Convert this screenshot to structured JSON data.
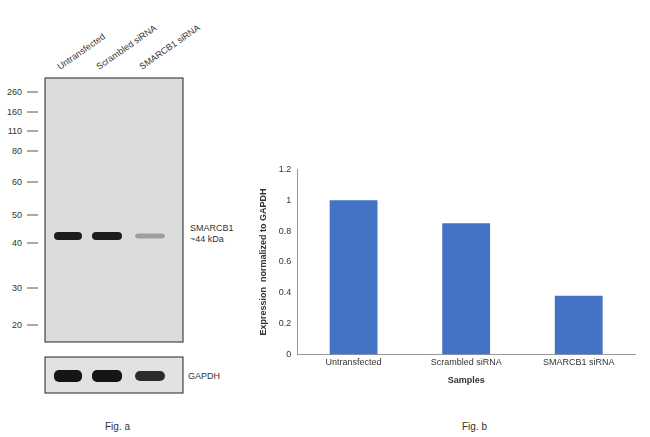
{
  "chart_data": {
    "type": "bar",
    "categories": [
      "Untransfected",
      "Scrambled siRNA",
      "SMARCB1 siRNA"
    ],
    "values": [
      1,
      0.85,
      0.38
    ],
    "color": "#4472c4",
    "x_label": "Samples",
    "y_label": "Expression  normalized to GAPDH",
    "ylim": [
      0,
      1.2
    ],
    "yticks": [
      0,
      0.2,
      0.4,
      0.6,
      0.8,
      1,
      1.2
    ],
    "grid": false
  },
  "blot": {
    "lanes": [
      "Untransfected",
      "Scrambled siRNA",
      "SMARCB1 siRNA"
    ],
    "markers": [
      260,
      160,
      110,
      80,
      60,
      50,
      40,
      30,
      20
    ],
    "bands": [
      "SMARCB1",
      "~44 kDa"
    ],
    "loading_control": "GAPDH"
  },
  "figure_labels": [
    "Fig. a",
    "Fig. b"
  ]
}
